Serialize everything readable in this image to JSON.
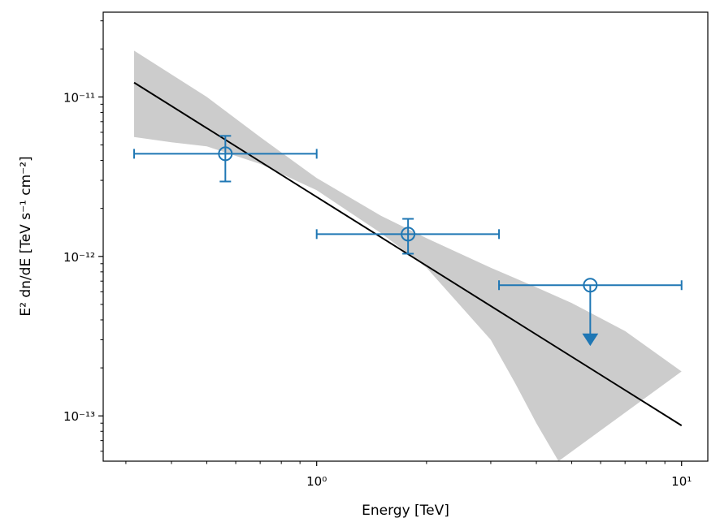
{
  "chart_data": {
    "type": "scatter",
    "title": "",
    "xlabel": "Energy [TeV]",
    "ylabel": "E² dn/dE [TeV s⁻¹ cm⁻²]",
    "xscale": "log",
    "yscale": "log",
    "xlim": [
      0.26,
      11.8
    ],
    "ylim": [
      5.2e-14,
      3.4e-11
    ],
    "x_ticks": [
      {
        "value": 1,
        "label": "10⁰"
      },
      {
        "value": 10,
        "label": "10¹"
      }
    ],
    "y_ticks": [
      {
        "value": 1e-13,
        "label": "10⁻¹³"
      },
      {
        "value": 1e-12,
        "label": "10⁻¹²"
      },
      {
        "value": 1e-11,
        "label": "10⁻¹¹"
      }
    ],
    "grid": false,
    "colors": {
      "points": "#1f77b4",
      "model": "#000000",
      "band": "#cccccc"
    },
    "flux_points": [
      {
        "e": 0.562,
        "e_min": 0.316,
        "e_max": 1.0,
        "flux": 4.4e-12,
        "flux_errn": 1.45e-12,
        "flux_errp": 1.3e-12,
        "is_ul": false
      },
      {
        "e": 1.78,
        "e_min": 1.0,
        "e_max": 3.16,
        "flux": 1.38e-12,
        "flux_errn": 3.4e-13,
        "flux_errp": 3.4e-13,
        "is_ul": false
      },
      {
        "e": 5.62,
        "e_min": 3.16,
        "e_max": 10.0,
        "flux": 6.6e-13,
        "flux_errn": 0,
        "flux_errp": 0,
        "is_ul": true
      }
    ],
    "model_line": {
      "x": [
        0.316,
        10.0
      ],
      "y": [
        1.23e-11,
        8.7e-14
      ]
    },
    "error_band": {
      "upper": [
        [
          0.316,
          1.95e-11
        ],
        [
          0.5,
          1e-11
        ],
        [
          0.7,
          5.6e-12
        ],
        [
          1.0,
          3.1e-12
        ],
        [
          1.5,
          1.8e-12
        ],
        [
          2.0,
          1.3e-12
        ],
        [
          3.0,
          8.5e-13
        ],
        [
          4.0,
          6.4e-13
        ],
        [
          5.0,
          5.1e-13
        ],
        [
          7.0,
          3.4e-13
        ],
        [
          10.0,
          1.9e-13
        ]
      ],
      "lower": [
        [
          0.316,
          5.6e-12
        ],
        [
          0.4,
          5.2e-12
        ],
        [
          0.5,
          4.9e-12
        ],
        [
          0.7,
          3.8e-12
        ],
        [
          1.0,
          2.6e-12
        ],
        [
          1.5,
          1.4e-12
        ],
        [
          2.0,
          8.5e-13
        ],
        [
          3.0,
          3e-13
        ],
        [
          3.5,
          1.6e-13
        ],
        [
          4.0,
          9e-14
        ],
        [
          4.6,
          5.2e-14
        ]
      ]
    }
  }
}
